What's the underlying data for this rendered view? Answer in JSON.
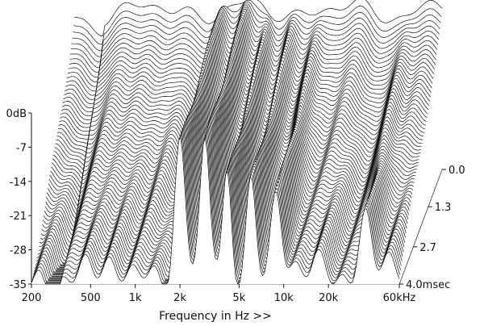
{
  "chart_data": {
    "type": "area",
    "subtype": "waterfall-3d",
    "title": "",
    "xlabel": "Frequency in Hz >>",
    "ylabel": "",
    "x_scale": "log",
    "x_range": [
      200,
      60000
    ],
    "x_ticks": [
      {
        "value": 200,
        "label": "200"
      },
      {
        "value": 500,
        "label": "500"
      },
      {
        "value": 1000,
        "label": "1k"
      },
      {
        "value": 2000,
        "label": "2k"
      },
      {
        "value": 5000,
        "label": "5k"
      },
      {
        "value": 10000,
        "label": "10k"
      },
      {
        "value": 20000,
        "label": "20k"
      },
      {
        "value": 60000,
        "label": "60kHz"
      }
    ],
    "y_range": [
      -35,
      0
    ],
    "y_ticks": [
      {
        "value": 0,
        "label": "0dB"
      },
      {
        "value": -7,
        "label": "-7"
      },
      {
        "value": -14,
        "label": "-14"
      },
      {
        "value": -21,
        "label": "-21"
      },
      {
        "value": -28,
        "label": "-28"
      },
      {
        "value": -35,
        "label": "-35"
      }
    ],
    "z_range": [
      0,
      4.0
    ],
    "z_ticks": [
      {
        "value": 0.0,
        "label": "0.0"
      },
      {
        "value": 1.3,
        "label": "1.3"
      },
      {
        "value": 2.7,
        "label": "2.7"
      },
      {
        "value": 4.0,
        "label": "4.0msec"
      }
    ],
    "slices": 64,
    "grid": true,
    "legend": "none",
    "colors": {
      "line": "#111111",
      "fill": "#ffffff",
      "floor": "#7a7a7a",
      "floor_stripe": "#c8c8c8"
    }
  }
}
